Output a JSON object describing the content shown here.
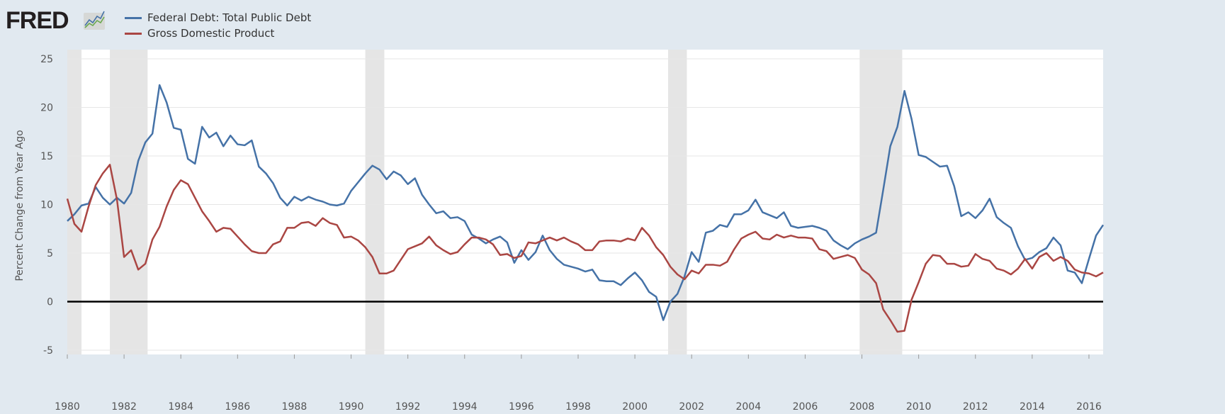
{
  "logo_text": "FRED",
  "colors": {
    "debt": "#4572a7",
    "gdp": "#aa4643",
    "recession": "#e5e5e5",
    "background": "#e1e9f0"
  },
  "chart_data": {
    "type": "line",
    "title": "",
    "xlabel": "",
    "ylabel": "Percent Change from Year Ago",
    "xlim": [
      1980,
      2016.5
    ],
    "ylim": [
      -5,
      25
    ],
    "x_ticks": [
      "1980",
      "1982",
      "1984",
      "1986",
      "1988",
      "1990",
      "1992",
      "1994",
      "1996",
      "1998",
      "2000",
      "2002",
      "2004",
      "2006",
      "2008",
      "2010",
      "2012",
      "2014",
      "2016"
    ],
    "y_ticks": [
      "-5",
      "0",
      "5",
      "10",
      "15",
      "20",
      "25"
    ],
    "frequency": "quarterly",
    "start": "1980-Q1",
    "legend_position": "top-left",
    "grid": true,
    "recessions": [
      [
        1980.0,
        1980.5
      ],
      [
        1981.5,
        1982.83
      ],
      [
        1990.5,
        1991.17
      ],
      [
        2001.17,
        2001.83
      ],
      [
        2007.92,
        2009.42
      ]
    ],
    "series": [
      {
        "name": "Federal Debt: Total Public Debt",
        "values": [
          8.3,
          9.0,
          9.9,
          10.1,
          11.8,
          10.7,
          10.0,
          10.7,
          10.1,
          11.2,
          14.5,
          16.4,
          17.3,
          22.3,
          20.5,
          17.9,
          17.7,
          14.7,
          14.2,
          18.0,
          16.9,
          17.4,
          16.0,
          17.1,
          16.2,
          16.1,
          16.6,
          13.9,
          13.2,
          12.2,
          10.7,
          9.9,
          10.8,
          10.4,
          10.8,
          10.5,
          10.3,
          10.0,
          9.9,
          10.1,
          11.4,
          12.3,
          13.2,
          14.0,
          13.6,
          12.6,
          13.4,
          13.0,
          12.1,
          12.7,
          11.0,
          10.0,
          9.1,
          9.3,
          8.6,
          8.7,
          8.3,
          6.9,
          6.5,
          6.0,
          6.4,
          6.7,
          6.1,
          4.0,
          5.3,
          4.3,
          5.1,
          6.8,
          5.3,
          4.4,
          3.8,
          3.6,
          3.4,
          3.1,
          3.3,
          2.2,
          2.1,
          2.1,
          1.7,
          2.4,
          3.0,
          2.2,
          1.0,
          0.5,
          -1.9,
          0.0,
          0.8,
          2.6,
          5.1,
          4.1,
          7.1,
          7.3,
          7.9,
          7.7,
          9.0,
          9.0,
          9.4,
          10.5,
          9.2,
          8.9,
          8.6,
          9.2,
          7.8,
          7.6,
          7.7,
          7.8,
          7.6,
          7.3,
          6.3,
          5.8,
          5.4,
          6.0,
          6.4,
          6.7,
          7.1,
          11.5,
          16.0,
          18.0,
          21.7,
          18.8,
          15.1,
          14.9,
          14.4,
          13.9,
          14.0,
          11.9,
          8.8,
          9.2,
          8.6,
          9.4,
          10.6,
          8.7,
          8.1,
          7.6,
          5.7,
          4.3,
          4.5,
          5.1,
          5.5,
          6.6,
          5.8,
          3.2,
          3.0,
          1.9,
          4.4,
          6.8,
          7.9
        ]
      },
      {
        "name": "Gross Domestic Product",
        "values": [
          10.6,
          8.0,
          7.2,
          9.8,
          12.0,
          13.2,
          14.1,
          10.5,
          4.6,
          5.3,
          3.3,
          3.9,
          6.4,
          7.7,
          9.8,
          11.5,
          12.5,
          12.1,
          10.7,
          9.3,
          8.3,
          7.2,
          7.6,
          7.5,
          6.7,
          5.9,
          5.2,
          5.0,
          5.0,
          5.9,
          6.2,
          7.6,
          7.6,
          8.1,
          8.2,
          7.8,
          8.6,
          8.1,
          7.9,
          6.6,
          6.7,
          6.3,
          5.6,
          4.6,
          2.9,
          2.9,
          3.2,
          4.3,
          5.4,
          5.7,
          6.0,
          6.7,
          5.8,
          5.3,
          4.9,
          5.1,
          5.9,
          6.6,
          6.6,
          6.4,
          5.9,
          4.8,
          4.9,
          4.5,
          4.7,
          6.1,
          6.0,
          6.3,
          6.6,
          6.3,
          6.6,
          6.2,
          5.9,
          5.3,
          5.3,
          6.2,
          6.3,
          6.3,
          6.2,
          6.5,
          6.3,
          7.6,
          6.8,
          5.6,
          4.8,
          3.6,
          2.8,
          2.3,
          3.2,
          2.9,
          3.8,
          3.8,
          3.7,
          4.1,
          5.4,
          6.5,
          6.9,
          7.2,
          6.5,
          6.4,
          6.9,
          6.6,
          6.8,
          6.6,
          6.6,
          6.5,
          5.4,
          5.2,
          4.4,
          4.6,
          4.8,
          4.5,
          3.3,
          2.8,
          1.9,
          -0.8,
          -1.9,
          -3.1,
          -3.0,
          0.2,
          2.0,
          3.9,
          4.8,
          4.7,
          3.9,
          3.9,
          3.6,
          3.7,
          4.9,
          4.4,
          4.2,
          3.4,
          3.2,
          2.8,
          3.4,
          4.4,
          3.4,
          4.6,
          5.0,
          4.2,
          4.6,
          4.2,
          3.3,
          3.0,
          2.9,
          2.6,
          3.0
        ]
      }
    ]
  }
}
